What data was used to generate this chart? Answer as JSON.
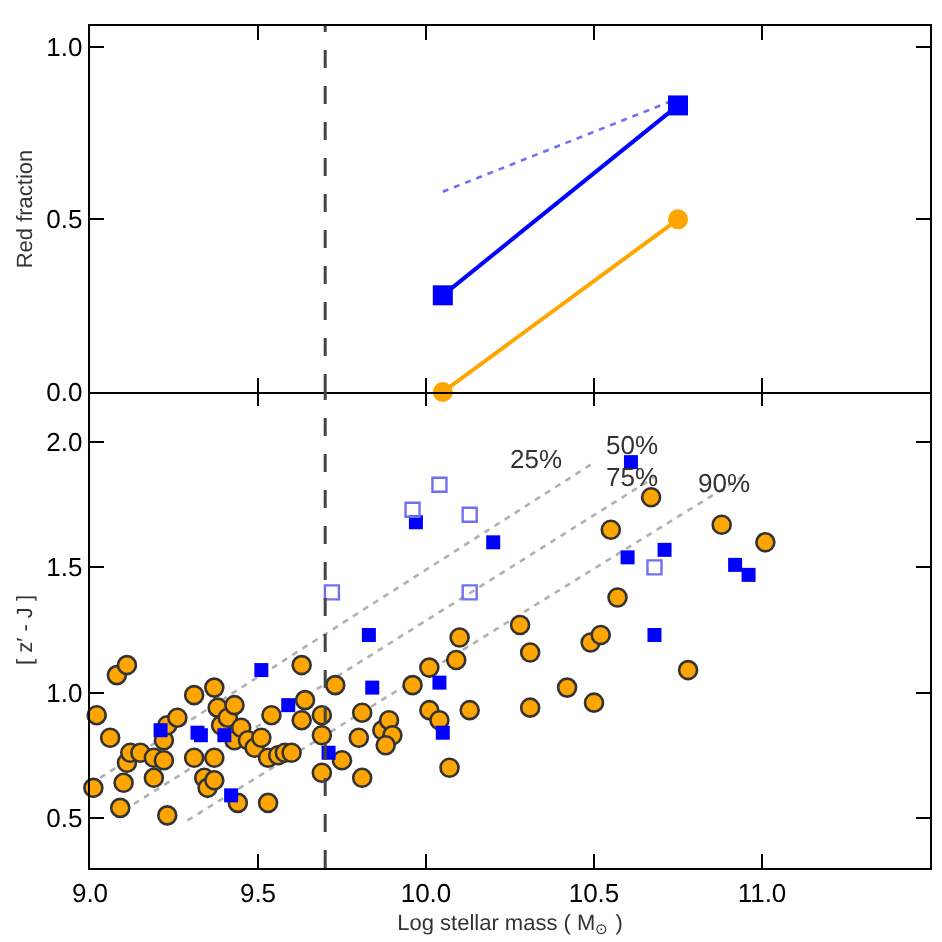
{
  "chart_data": [
    {
      "type": "line",
      "ylabel": "Red fraction",
      "xlim": [
        9.0,
        11.5
      ],
      "xticks": [
        {
          "value": 9.0,
          "label": null
        },
        {
          "value": 9.5,
          "label": null
        },
        {
          "value": 10.0,
          "label": null
        },
        {
          "value": 10.5,
          "label": null
        },
        {
          "value": 11.0,
          "label": null
        }
      ],
      "ylim": [
        0,
        1.06
      ],
      "yticks": [
        {
          "value": 0,
          "label": "0.0"
        },
        {
          "value": 0.5,
          "label": "0.5"
        },
        {
          "value": 1.0,
          "label": "1.0"
        }
      ],
      "tick_labels": "y",
      "grid": false,
      "ref_lines": [
        {
          "axis": "x",
          "value": 9.7,
          "color": "#444444",
          "line_style": "dashed"
        }
      ],
      "series": [
        {
          "color": "#7070f0",
          "x": [
            10.05,
            10.75
          ],
          "values": [
            0.58,
            0.85
          ],
          "marker": "none",
          "line_style": "dotted"
        },
        {
          "color": "#0000ff",
          "x": [
            10.05,
            10.75
          ],
          "values": [
            0.28,
            0.83
          ],
          "marker": "square",
          "line_style": "solid"
        },
        {
          "color": "#ffa500",
          "x": [
            10.05,
            10.75
          ],
          "values": [
            0.0,
            0.5
          ],
          "marker": "circle",
          "line_style": "solid"
        }
      ]
    },
    {
      "type": "scatter",
      "xlabel": "Log stellar mass ( M$_{⊙}$ )",
      "ylabel": "[ z′ - J ]",
      "xlim": [
        9.0,
        11.5
      ],
      "xticks": [
        {
          "value": 9.0,
          "label": "9.0"
        },
        {
          "value": 9.5,
          "label": "9.5"
        },
        {
          "value": 10.0,
          "label": "10.0"
        },
        {
          "value": 10.5,
          "label": "10.5"
        },
        {
          "value": 11.0,
          "label": "11.0"
        }
      ],
      "ylim": [
        0.3,
        2.2
      ],
      "yticks": [
        {
          "value": 0.5,
          "label": "0.5"
        },
        {
          "value": 1.0,
          "label": "1.0"
        },
        {
          "value": 1.5,
          "label": "1.5"
        },
        {
          "value": 2.0,
          "label": "2.0"
        }
      ],
      "grid": false,
      "ref_lines": [
        {
          "axis": "x",
          "value": 9.7,
          "color": "#444444",
          "line_style": "dashed"
        }
      ],
      "annotations": [
        "25%",
        "50%",
        "75%",
        "90%"
      ],
      "series": [
        {
          "type": "line",
          "color": "#b0b0b0",
          "x": [
            9.03,
            10.49
          ],
          "values": [
            0.66,
            1.91
          ],
          "marker": "none",
          "line_style": "dotted"
        },
        {
          "type": "line",
          "color": "#b0b0b0",
          "x": [
            9.1,
            10.68
          ],
          "values": [
            0.53,
            1.86
          ],
          "marker": "none",
          "line_style": "dotted"
        },
        {
          "type": "line",
          "color": "#b0b0b0",
          "x": [
            9.29,
            10.94
          ],
          "values": [
            0.49,
            1.86
          ],
          "marker": "none",
          "line_style": "dotted"
        },
        {
          "color": "#ffa500",
          "marker": "circle",
          "x": [
            9.01,
            9.02,
            9.06,
            9.08,
            9.11,
            9.09,
            9.1,
            9.11,
            9.12,
            9.15,
            9.19,
            9.19,
            9.22,
            9.23,
            9.22,
            9.23,
            9.26,
            9.31,
            9.31,
            9.34,
            9.35,
            9.37,
            9.37,
            9.37,
            9.38,
            9.39,
            9.41,
            9.43,
            9.43,
            9.44,
            9.45,
            9.47,
            9.49,
            9.51,
            9.53,
            9.53,
            9.54,
            9.56,
            9.58,
            9.6,
            9.63,
            9.63,
            9.64,
            9.69,
            9.69,
            9.69,
            9.73,
            9.75,
            9.8,
            9.81,
            9.81,
            9.87,
            9.89,
            9.9,
            9.88,
            9.96,
            10.01,
            10.01,
            10.04,
            10.07,
            10.09,
            10.1,
            10.13,
            10.28,
            10.31,
            10.31,
            10.42,
            10.49,
            10.5,
            10.52,
            10.55,
            10.57,
            10.67,
            10.78,
            10.88,
            11.01
          ],
          "values": [
            0.62,
            0.91,
            0.82,
            1.07,
            1.11,
            0.54,
            0.64,
            0.72,
            0.76,
            0.76,
            0.74,
            0.66,
            0.73,
            0.51,
            0.81,
            0.87,
            0.9,
            0.99,
            0.74,
            0.66,
            0.62,
            1.02,
            0.74,
            0.65,
            0.94,
            0.87,
            0.9,
            0.95,
            0.81,
            0.56,
            0.86,
            0.81,
            0.78,
            0.82,
            0.74,
            0.56,
            0.91,
            0.75,
            0.76,
            0.76,
            1.11,
            0.89,
            0.97,
            0.91,
            0.83,
            0.68,
            1.03,
            0.73,
            0.82,
            0.92,
            0.66,
            0.85,
            0.89,
            0.83,
            0.79,
            1.03,
            1.1,
            0.93,
            0.89,
            0.7,
            1.13,
            1.22,
            0.93,
            1.27,
            1.16,
            0.94,
            1.02,
            1.2,
            0.96,
            1.23,
            1.65,
            1.38,
            1.78,
            1.09,
            1.67,
            1.6
          ]
        },
        {
          "color": "#0000ff",
          "marker": "square",
          "x": [
            9.21,
            9.32,
            9.33,
            9.4,
            9.42,
            9.51,
            9.59,
            9.71,
            9.83,
            9.84,
            9.97,
            10.04,
            10.05,
            10.2,
            10.61,
            10.6,
            10.71,
            10.68,
            10.92,
            10.96
          ],
          "values": [
            0.85,
            0.84,
            0.83,
            0.83,
            0.59,
            1.09,
            0.95,
            0.76,
            1.23,
            1.02,
            1.68,
            1.04,
            0.84,
            1.6,
            1.92,
            1.54,
            1.57,
            1.23,
            1.51,
            1.47
          ]
        },
        {
          "color": "#7070f0",
          "marker": "square-open",
          "x": [
            9.72,
            9.96,
            10.04,
            10.13,
            10.13,
            10.68
          ],
          "values": [
            1.4,
            1.73,
            1.83,
            1.71,
            1.4,
            1.5
          ]
        }
      ]
    }
  ]
}
